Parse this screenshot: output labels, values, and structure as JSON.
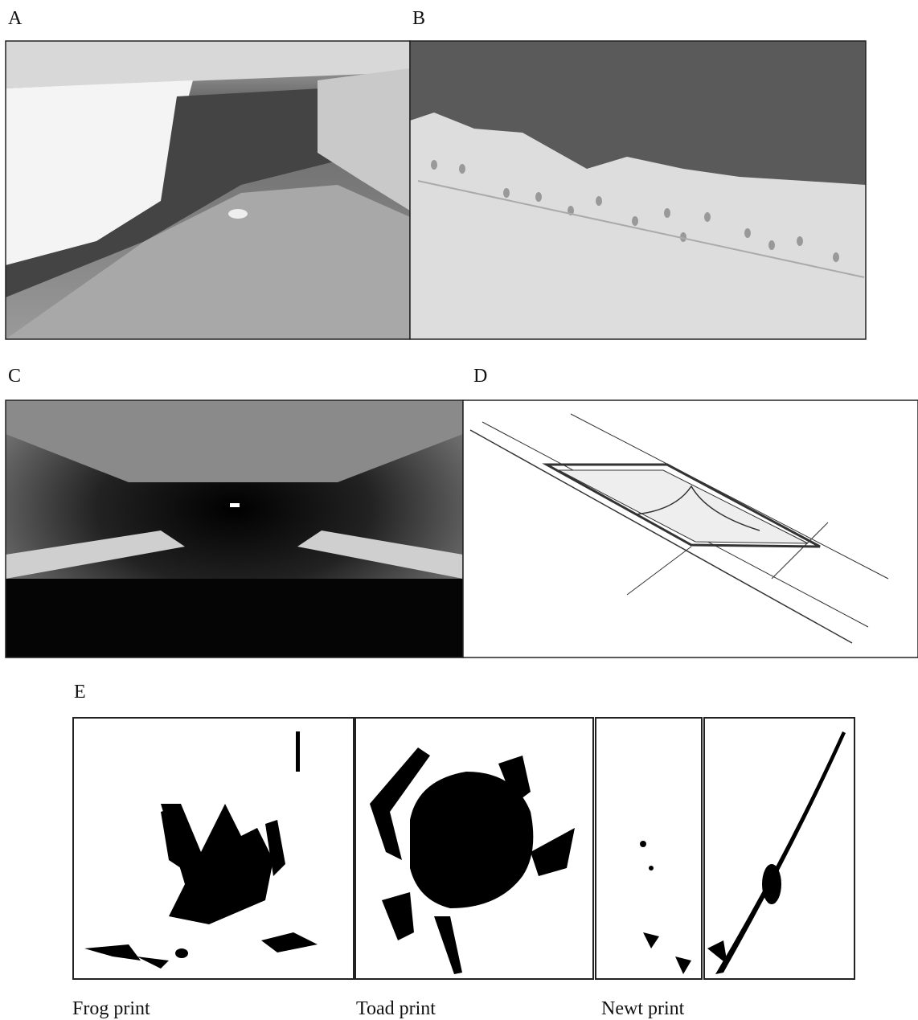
{
  "panels": {
    "a": "A",
    "b": "B",
    "c": "C",
    "d": "D",
    "e": "E"
  },
  "captions": [
    "Frog print",
    "Toad print",
    "Newt print"
  ]
}
